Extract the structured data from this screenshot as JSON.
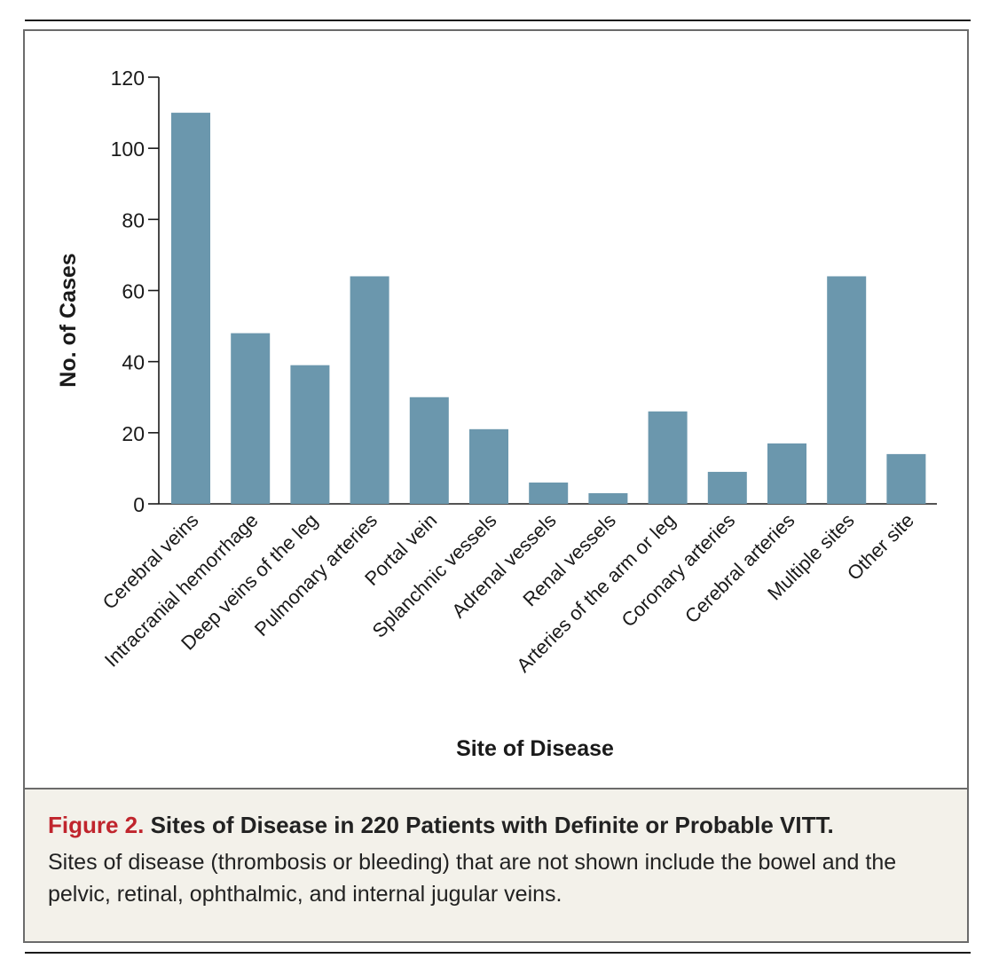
{
  "caption": {
    "figure_label": "Figure 2.",
    "title": "Sites of Disease in 220 Patients with Definite or Probable VITT.",
    "description": "Sites of disease (thrombosis or bleeding) that are not shown include the bowel and the pelvic, retinal, ophthalmic, and internal jugular veins."
  },
  "colors": {
    "bar": "#6b97ad",
    "figure_label": "#c0252d",
    "caption_bg": "#f3f1ea"
  },
  "chart_data": {
    "type": "bar",
    "xlabel": "Site of Disease",
    "ylabel": "No. of Cases",
    "ylim": [
      0,
      120
    ],
    "yticks": [
      0,
      20,
      40,
      60,
      80,
      100,
      120
    ],
    "grid": false,
    "categories": [
      "Cerebral veins",
      "Intracranial hemorrhage",
      "Deep veins of the leg",
      "Pulmonary arteries",
      "Portal vein",
      "Splanchnic vessels",
      "Adrenal vessels",
      "Renal vessels",
      "Arteries of the arm or leg",
      "Coronary arteries",
      "Cerebral arteries",
      "Multiple sites",
      "Other site"
    ],
    "values": [
      110,
      48,
      39,
      64,
      30,
      21,
      6,
      3,
      26,
      9,
      17,
      64,
      14
    ]
  }
}
